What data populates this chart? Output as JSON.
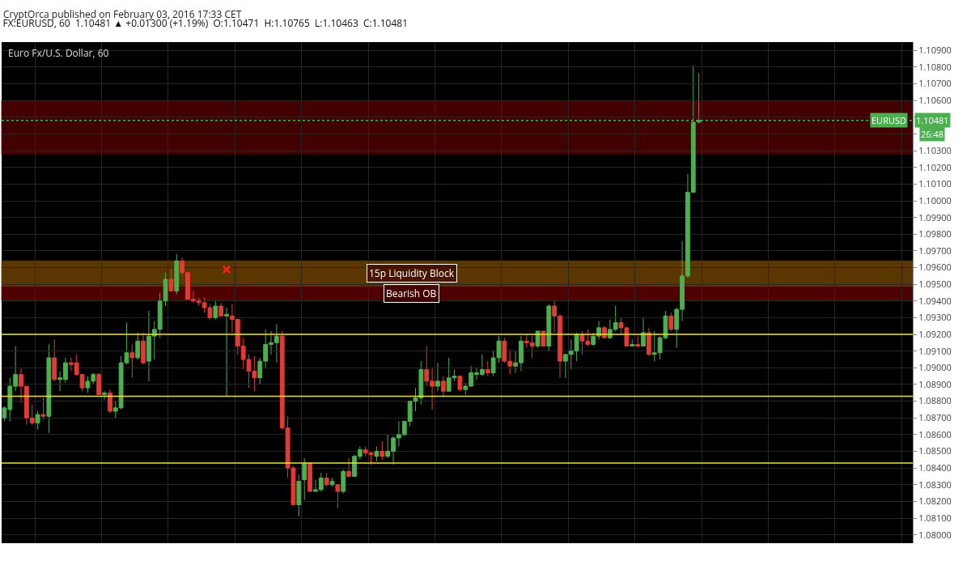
{
  "chart_data": {
    "type": "candlestick",
    "title": "FX:EURUSD, 60  1.10481 ▲ +0.01300 (+1.19%)  O:1.10471  H:1.10765  L:1.10463  C:1.10481",
    "subtitle": "Euro Fx/U.S. Dollar, 60",
    "annotations": [
      "CryptOrca published on February 03, 2016 17:33 CET",
      {
        "text": "1.10481",
        "y": 1.10481
      },
      "26:48"
    ],
    "categories": [
      null,
      null,
      null,
      null,
      null,
      null,
      null,
      null,
      null,
      null,
      null,
      null,
      null,
      null,
      null,
      null,
      null,
      null,
      null,
      null,
      null,
      null,
      null,
      null,
      null,
      null,
      null,
      null,
      null,
      null,
      null,
      null,
      null,
      null,
      null,
      null,
      null,
      null,
      null,
      null,
      null,
      null,
      null,
      null,
      null,
      null,
      null,
      null,
      null,
      null,
      null,
      null,
      null,
      null,
      null,
      null,
      null,
      null,
      null,
      null,
      null,
      null,
      null,
      null,
      null,
      null,
      null,
      null,
      null,
      null,
      null,
      null,
      null,
      null,
      null,
      null,
      null,
      null,
      null,
      null,
      null,
      null,
      null,
      null,
      null,
      null,
      null,
      null,
      null,
      null,
      null,
      null,
      null,
      null,
      null,
      null,
      null,
      null,
      null,
      null,
      null,
      null,
      null,
      null,
      null,
      null,
      null,
      null,
      null,
      null,
      null,
      null,
      null,
      null,
      null,
      null,
      null,
      null,
      null,
      null,
      null,
      null,
      null,
      null,
      null,
      null,
      null,
      null,
      null,
      null,
      null,
      null,
      null,
      null,
      null,
      null,
      null,
      null,
      null,
      null,
      null,
      null,
      null,
      null,
      null,
      null,
      null,
      null,
      null,
      null,
      null,
      null,
      null,
      null,
      null,
      null,
      null,
      null,
      null,
      null,
      null,
      null,
      null,
      null
    ],
    "ohlc": [
      [
        1.087,
        1.0877,
        1.0868,
        1.0876
      ],
      [
        1.0875,
        1.0894,
        1.0868,
        1.0889
      ],
      [
        1.0889,
        1.0913,
        1.0886,
        1.0896
      ],
      [
        1.0896,
        1.09,
        1.0879,
        1.0889
      ],
      [
        1.0889,
        1.0889,
        1.0866,
        1.087
      ],
      [
        1.087,
        1.0878,
        1.0866,
        1.0867
      ],
      [
        1.0867,
        1.0874,
        1.0863,
        1.0872
      ],
      [
        1.0872,
        1.0882,
        1.0869,
        1.0871
      ],
      [
        1.0871,
        1.0914,
        1.0861,
        1.0906
      ],
      [
        1.0906,
        1.0917,
        1.0892,
        1.0893
      ],
      [
        1.0893,
        1.0898,
        1.0886,
        1.0894
      ],
      [
        1.0893,
        1.0906,
        1.0891,
        1.0903
      ],
      [
        1.0903,
        1.0906,
        1.0898,
        1.0902
      ],
      [
        1.0903,
        1.0908,
        1.0895,
        1.0896
      ],
      [
        1.0896,
        1.0896,
        1.0886,
        1.0888
      ],
      [
        1.0888,
        1.0895,
        1.0885,
        1.0892
      ],
      [
        1.0892,
        1.0897,
        1.089,
        1.0896
      ],
      [
        1.0896,
        1.0897,
        1.0884,
        1.0884
      ],
      [
        1.0884,
        1.0886,
        1.0881,
        1.0885
      ],
      [
        1.0885,
        1.0887,
        1.0873,
        1.0874
      ],
      [
        1.0874,
        1.088,
        1.087,
        1.0876
      ],
      [
        1.0876,
        1.0907,
        1.0875,
        1.0903
      ],
      [
        1.0903,
        1.0927,
        1.0902,
        1.0909
      ],
      [
        1.0909,
        1.0914,
        1.0894,
        1.0906
      ],
      [
        1.0906,
        1.0921,
        1.0905,
        1.0916
      ],
      [
        1.0916,
        1.0921,
        1.0902,
        1.0903
      ],
      [
        1.0904,
        1.0934,
        1.0892,
        1.0919
      ],
      [
        1.0919,
        1.0928,
        1.0905,
        1.0923
      ],
      [
        1.0923,
        1.0945,
        1.0918,
        1.094
      ],
      [
        1.094,
        1.0957,
        1.0937,
        1.0953
      ],
      [
        1.0953,
        1.0959,
        1.0946,
        1.0946
      ],
      [
        1.0946,
        1.0968,
        1.0944,
        1.0964
      ],
      [
        1.0964,
        1.0966,
        1.0955,
        1.0957
      ],
      [
        1.0957,
        1.0957,
        1.0941,
        1.0941
      ],
      [
        1.0941,
        1.0946,
        1.0939,
        1.094
      ],
      [
        1.094,
        1.0942,
        1.0937,
        1.0939
      ],
      [
        1.0939,
        1.0942,
        1.0933,
        1.0936
      ],
      [
        1.0936,
        1.0938,
        1.0929,
        1.093
      ],
      [
        1.093,
        1.094,
        1.0929,
        1.0937
      ],
      [
        1.0937,
        1.0939,
        1.0931,
        1.0931
      ],
      [
        1.0931,
        1.0936,
        1.0883,
        1.0932
      ],
      [
        1.0931,
        1.0938,
        1.0921,
        1.0929
      ],
      [
        1.0929,
        1.0929,
        1.0908,
        1.0913
      ],
      [
        1.0913,
        1.0918,
        1.0899,
        1.0905
      ],
      [
        1.0905,
        1.0908,
        1.0888,
        1.0898
      ],
      [
        1.0898,
        1.0907,
        1.0886,
        1.0894
      ],
      [
        1.0894,
        1.0906,
        1.089,
        1.0904
      ],
      [
        1.0904,
        1.0923,
        1.09,
        1.0914
      ],
      [
        1.0914,
        1.0922,
        1.0908,
        1.0915
      ],
      [
        1.0915,
        1.0926,
        1.0903,
        1.0919
      ],
      [
        1.0919,
        1.0922,
        1.0863,
        1.0864
      ],
      [
        1.0864,
        1.0871,
        1.0834,
        1.084
      ],
      [
        1.084,
        1.0841,
        1.0818,
        1.0818
      ],
      [
        1.0818,
        1.0836,
        1.0811,
        1.0832
      ],
      [
        1.0833,
        1.0846,
        1.0821,
        1.0843
      ],
      [
        1.0843,
        1.0843,
        1.0826,
        1.0826
      ],
      [
        1.0826,
        1.0833,
        1.0826,
        1.0827
      ],
      [
        1.0827,
        1.0837,
        1.0826,
        1.0834
      ],
      [
        1.0834,
        1.0837,
        1.0829,
        1.083
      ],
      [
        1.083,
        1.0834,
        1.0829,
        1.0832
      ],
      [
        1.083,
        1.083,
        1.0816,
        1.0826
      ],
      [
        1.0826,
        1.0839,
        1.0825,
        1.0838
      ],
      [
        1.0838,
        1.0846,
        1.0835,
        1.0835
      ],
      [
        1.0835,
        1.0848,
        1.0835,
        1.0847
      ],
      [
        1.0847,
        1.0853,
        1.0845,
        1.0851
      ],
      [
        1.0851,
        1.0853,
        1.0847,
        1.0849
      ],
      [
        1.0849,
        1.085,
        1.0842,
        1.0848
      ],
      [
        1.0847,
        1.0853,
        1.0844,
        1.085
      ],
      [
        1.085,
        1.0856,
        1.0845,
        1.0847
      ],
      [
        1.0847,
        1.086,
        1.0846,
        1.085
      ],
      [
        1.085,
        1.0859,
        1.0842,
        1.0858
      ],
      [
        1.0858,
        1.0868,
        1.0853,
        1.086
      ],
      [
        1.086,
        1.0868,
        1.0859,
        1.0868
      ],
      [
        1.0868,
        1.088,
        1.0865,
        1.088
      ],
      [
        1.088,
        1.0888,
        1.0874,
        1.0882
      ],
      [
        1.0882,
        1.0904,
        1.0878,
        1.0899
      ],
      [
        1.0899,
        1.0913,
        1.0889,
        1.0892
      ],
      [
        1.0892,
        1.09,
        1.0875,
        1.0889
      ],
      [
        1.0889,
        1.0903,
        1.0886,
        1.0892
      ],
      [
        1.0892,
        1.0895,
        1.0883,
        1.0886
      ],
      [
        1.0886,
        1.0906,
        1.0886,
        1.0894
      ],
      [
        1.0894,
        1.0899,
        1.0892,
        1.0895
      ],
      [
        1.0895,
        1.0895,
        1.0886,
        1.0887
      ],
      [
        1.0887,
        1.0891,
        1.0884,
        1.0889
      ],
      [
        1.0889,
        1.0901,
        1.0889,
        1.0897
      ],
      [
        1.0896,
        1.09,
        1.0893,
        1.0897
      ],
      [
        1.0896,
        1.0908,
        1.0895,
        1.0899
      ],
      [
        1.0899,
        1.0904,
        1.0895,
        1.0897
      ],
      [
        1.0897,
        1.091,
        1.0895,
        1.0906
      ],
      [
        1.0906,
        1.0919,
        1.0903,
        1.0916
      ],
      [
        1.0916,
        1.0918,
        1.0903,
        1.0904
      ],
      [
        1.0904,
        1.0911,
        1.0896,
        1.0901
      ],
      [
        1.0901,
        1.091,
        1.0897,
        1.0903
      ],
      [
        1.0903,
        1.0919,
        1.0898,
        1.0916
      ],
      [
        1.0916,
        1.092,
        1.0912,
        1.0915
      ],
      [
        1.0915,
        1.0919,
        1.0906,
        1.0913
      ],
      [
        1.0913,
        1.0922,
        1.0912,
        1.0922
      ],
      [
        1.0922,
        1.0922,
        1.0913,
        1.0913
      ],
      [
        1.0913,
        1.0938,
        1.091,
        1.0937
      ],
      [
        1.0937,
        1.094,
        1.0921,
        1.0931
      ],
      [
        1.0931,
        1.0932,
        1.0894,
        1.0904
      ],
      [
        1.0904,
        1.0908,
        1.0894,
        1.0908
      ],
      [
        1.0908,
        1.0917,
        1.0899,
        1.091
      ],
      [
        1.091,
        1.0921,
        1.0904,
        1.092
      ],
      [
        1.092,
        1.0922,
        1.0908,
        1.0916
      ],
      [
        1.0916,
        1.0923,
        1.0913,
        1.0914
      ],
      [
        1.0914,
        1.0921,
        1.0913,
        1.0919
      ],
      [
        1.0919,
        1.0928,
        1.0917,
        1.0924
      ],
      [
        1.0924,
        1.0925,
        1.0918,
        1.0918
      ],
      [
        1.0918,
        1.0929,
        1.0917,
        1.0923
      ],
      [
        1.0923,
        1.0937,
        1.0922,
        1.0927
      ],
      [
        1.0927,
        1.093,
        1.092,
        1.0924
      ],
      [
        1.0924,
        1.0924,
        1.0913,
        1.0913
      ],
      [
        1.0913,
        1.0917,
        1.0913,
        1.0914
      ],
      [
        1.0914,
        1.0919,
        1.0912,
        1.0913
      ],
      [
        1.0913,
        1.093,
        1.0913,
        1.0921
      ],
      [
        1.0921,
        1.0924,
        1.0907,
        1.0908
      ],
      [
        1.0908,
        1.0922,
        1.0904,
        1.0909
      ],
      [
        1.0909,
        1.0919,
        1.0905,
        1.0918
      ],
      [
        1.0918,
        1.0934,
        1.0917,
        1.0931
      ],
      [
        1.0931,
        1.0933,
        1.0922,
        1.0923
      ],
      [
        1.0923,
        1.0936,
        1.0912,
        1.0935
      ],
      [
        1.0935,
        1.0976,
        1.0928,
        1.0955
      ],
      [
        1.0955,
        1.1016,
        1.0954,
        1.1005
      ],
      [
        1.1005,
        1.1081,
        1.1005,
        1.1047
      ],
      [
        1.10471,
        1.10765,
        1.10463,
        1.10481
      ],
      null,
      null,
      null,
      null,
      null,
      null,
      null,
      null,
      null,
      null,
      null,
      null,
      null,
      null,
      null,
      null,
      null,
      null,
      null,
      null,
      null,
      null,
      null,
      null,
      null,
      null,
      null,
      null,
      null,
      null,
      null,
      null,
      null,
      null,
      null,
      null,
      null,
      null
    ],
    "colors": [
      "#4caf50",
      "#4caf50",
      "#4caf50",
      "#e53935",
      "#e53935",
      "#e53935",
      "#4caf50",
      "#e53935",
      "#4caf50",
      "#e53935",
      "#4caf50",
      "#4caf50",
      "#e53935",
      "#e53935",
      "#e53935",
      "#4caf50",
      "#4caf50",
      "#e53935",
      "#4caf50",
      "#e53935",
      "#4caf50",
      "#4caf50",
      "#4caf50",
      "#e53935",
      "#4caf50",
      "#e53935",
      "#4caf50",
      "#4caf50",
      "#4caf50",
      "#4caf50",
      "#e53935",
      "#4caf50",
      "#e53935",
      "#e53935",
      "#e53935",
      "#e53935",
      "#e53935",
      "#e53935",
      "#4caf50",
      "#e53935",
      "#4caf50",
      "#e53935",
      "#e53935",
      "#e53935",
      "#e53935",
      "#e53935",
      "#4caf50",
      "#4caf50",
      "#4caf50",
      "#4caf50",
      "#e53935",
      "#e53935",
      "#e53935",
      "#4caf50",
      "#4caf50",
      "#e53935",
      "#4caf50",
      "#4caf50",
      "#e53935",
      "#4caf50",
      "#e53935",
      "#4caf50",
      "#e53935",
      "#4caf50",
      "#4caf50",
      "#e53935",
      "#e53935",
      "#4caf50",
      "#e53935",
      "#4caf50",
      "#4caf50",
      "#4caf50",
      "#4caf50",
      "#4caf50",
      "#4caf50",
      "#4caf50",
      "#e53935",
      "#e53935",
      "#4caf50",
      "#e53935",
      "#4caf50",
      "#4caf50",
      "#e53935",
      "#4caf50",
      "#4caf50",
      "#4caf50",
      "#4caf50",
      "#e53935",
      "#4caf50",
      "#4caf50",
      "#e53935",
      "#e53935",
      "#4caf50",
      "#4caf50",
      "#e53935",
      "#e53935",
      "#4caf50",
      "#e53935",
      "#4caf50",
      "#e53935",
      "#e53935",
      "#4caf50",
      "#4caf50",
      "#4caf50",
      "#e53935",
      "#e53935",
      "#4caf50",
      "#4caf50",
      "#e53935",
      "#4caf50",
      "#4caf50",
      "#e53935",
      "#e53935",
      "#4caf50",
      "#e53935",
      "#4caf50",
      "#e53935",
      "#4caf50",
      "#4caf50",
      "#4caf50",
      "#e53935",
      "#4caf50",
      "#4caf50",
      "#4caf50",
      "#4caf50",
      "#4caf50",
      null,
      null,
      null,
      null,
      null,
      null,
      null,
      null,
      null,
      null,
      null,
      null,
      null,
      null,
      null,
      null,
      null,
      null,
      null,
      null,
      null,
      null,
      null,
      null,
      null,
      null,
      null,
      null,
      null,
      null,
      null,
      null,
      null,
      null,
      null,
      null,
      null,
      null
    ],
    "ylim": [
      1.0795,
      1.1095
    ],
    "yticks": [
      {
        "value": 1.08,
        "label": "1.08000"
      },
      {
        "value": 1.081,
        "label": "1.08100"
      },
      {
        "value": 1.082,
        "label": "1.08200"
      },
      {
        "value": 1.083,
        "label": "1.08300"
      },
      {
        "value": 1.084,
        "label": "1.08400"
      },
      {
        "value": 1.085,
        "label": "1.08500"
      },
      {
        "value": 1.086,
        "label": "1.08600"
      },
      {
        "value": 1.087,
        "label": "1.08700"
      },
      {
        "value": 1.088,
        "label": "1.08800"
      },
      {
        "value": 1.089,
        "label": "1.08900"
      },
      {
        "value": 1.09,
        "label": "1.09000"
      },
      {
        "value": 1.091,
        "label": "1.09100"
      },
      {
        "value": 1.092,
        "label": "1.09200"
      },
      {
        "value": 1.093,
        "label": "1.09300"
      },
      {
        "value": 1.094,
        "label": "1.09400"
      },
      {
        "value": 1.095,
        "label": "1.09500"
      },
      {
        "value": 1.096,
        "label": "1.09600"
      },
      {
        "value": 1.097,
        "label": "1.09700"
      },
      {
        "value": 1.098,
        "label": "1.09800"
      },
      {
        "value": 1.099,
        "label": "1.09900"
      },
      {
        "value": 1.1,
        "label": "1.10000"
      },
      {
        "value": 1.101,
        "label": "1.10100"
      },
      {
        "value": 1.102,
        "label": "1.10200"
      },
      {
        "value": 1.103,
        "label": "1.10300"
      },
      {
        "value": 1.104,
        "label": null
      },
      {
        "value": 1.105,
        "label": null
      },
      {
        "value": 1.106,
        "label": "1.10600"
      },
      {
        "value": 1.107,
        "label": "1.10700"
      },
      {
        "value": 1.108,
        "label": "1.10800"
      },
      {
        "value": 1.109,
        "label": "1.10900"
      }
    ],
    "bands": [
      {
        "axis": "y",
        "from": 1.1028,
        "to": 1.106,
        "color": "#5a0000"
      },
      {
        "axis": "y",
        "from": 1.0949,
        "to": 1.0964,
        "label": "15p Liquidity Block",
        "color": "#7a4a00"
      },
      {
        "axis": "y",
        "from": 1.094,
        "to": 1.0949,
        "label": "Bearish OB",
        "color": "#6a0000"
      }
    ],
    "ref_lines": [
      {
        "axis": "y",
        "value": 1.092,
        "color": "#e8e33a",
        "line_style": "solid"
      },
      {
        "axis": "y",
        "value": 1.0883,
        "color": "#e8e33a",
        "line_style": "solid"
      },
      {
        "axis": "y",
        "value": 1.0843,
        "color": "#e8e33a",
        "line_style": "solid"
      },
      {
        "axis": "y",
        "value": 1.10481,
        "label": "EURUSD",
        "color": "#4caf50",
        "line_style": "dotted"
      }
    ],
    "grid": true,
    "tick_labels": "y"
  }
}
